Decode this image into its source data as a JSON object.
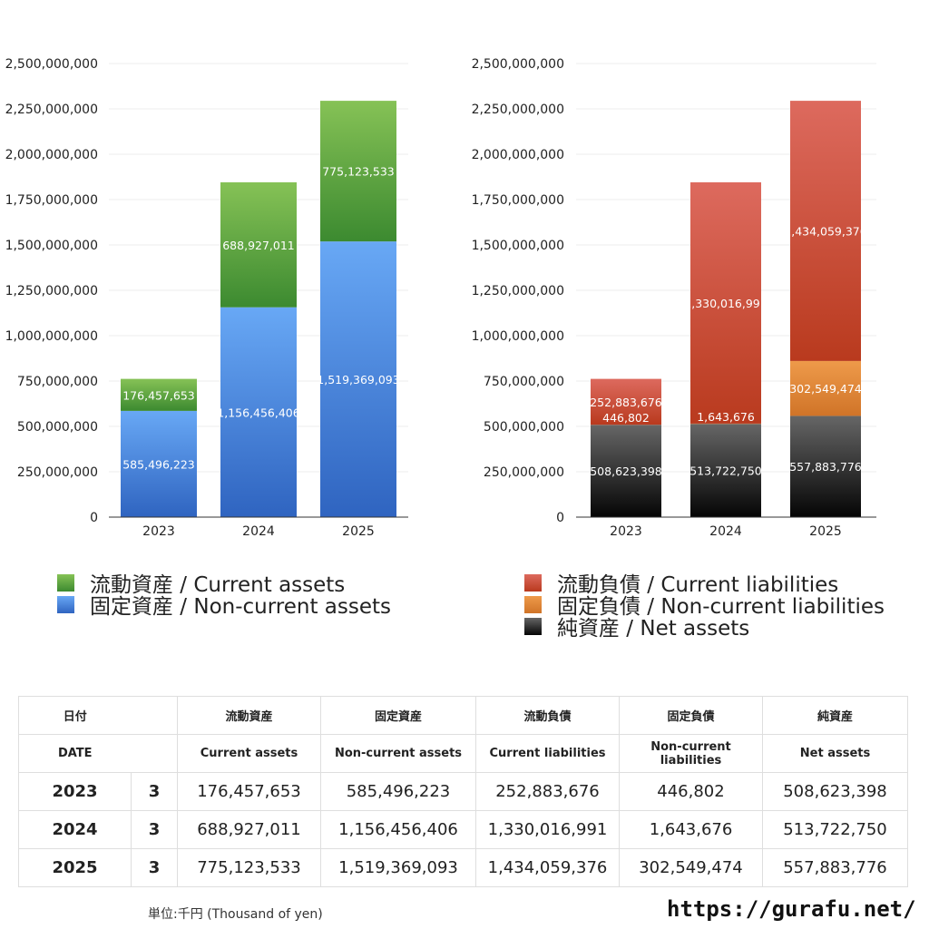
{
  "colors": {
    "current_assets": [
      "#86c256",
      "#3c8a30"
    ],
    "noncurrent_assets": [
      "#68a8f5",
      "#2f64c0"
    ],
    "current_liabilities": [
      "#dd6a5e",
      "#b93a1e"
    ],
    "noncurrent_liabilities": [
      "#ee9a4a",
      "#d07428"
    ],
    "net_assets": [
      "#666666",
      "#050505"
    ]
  },
  "chart_data": [
    {
      "type": "bar",
      "stacked": true,
      "categories": [
        "2023",
        "2024",
        "2025"
      ],
      "ylim": [
        0,
        2500000000
      ],
      "yticks": [
        "0",
        "250,000,000",
        "500,000,000",
        "750,000,000",
        "1,000,000,000",
        "1,250,000,000",
        "1,500,000,000",
        "1,750,000,000",
        "2,000,000,000",
        "2,250,000,000",
        "2,500,000,000"
      ],
      "grid": true,
      "series": [
        {
          "name": "固定資産 / Non-current assets",
          "key": "noncurrent_assets",
          "values": [
            585496223,
            1156456406,
            1519369093
          ],
          "labels": [
            "585,496,223",
            "1,156,456,406",
            "1,519,369,093"
          ]
        },
        {
          "name": "流動資産 / Current assets",
          "key": "current_assets",
          "values": [
            176457653,
            688927011,
            775123533
          ],
          "labels": [
            "176,457,653",
            "688,927,011",
            "775,123,533"
          ]
        }
      ],
      "legend": [
        "流動資産 / Current assets",
        "固定資産 / Non-current assets"
      ]
    },
    {
      "type": "bar",
      "stacked": true,
      "categories": [
        "2023",
        "2024",
        "2025"
      ],
      "ylim": [
        0,
        2500000000
      ],
      "yticks": [
        "0",
        "250,000,000",
        "500,000,000",
        "750,000,000",
        "1,000,000,000",
        "1,250,000,000",
        "1,500,000,000",
        "1,750,000,000",
        "2,000,000,000",
        "2,250,000,000",
        "2,500,000,000"
      ],
      "grid": true,
      "series": [
        {
          "name": "純資産 / Net assets",
          "key": "net_assets",
          "values": [
            508623398,
            513722750,
            557883776
          ],
          "labels": [
            "508,623,398",
            "513,722,750",
            "557,883,776"
          ]
        },
        {
          "name": "固定負債 / Non-current liabilities",
          "key": "noncurrent_liabilities",
          "values": [
            446802,
            1643676,
            302549474
          ],
          "labels": [
            "446,802",
            "1,643,676",
            "302,549,474"
          ]
        },
        {
          "name": "流動負債 / Current liabilities",
          "key": "current_liabilities",
          "values": [
            252883676,
            1330016991,
            1434059376
          ],
          "labels": [
            "252,883,676",
            "1,330,016,991",
            "1,434,059,376"
          ]
        }
      ],
      "legend": [
        "流動負債 / Current liabilities",
        "固定負債 / Non-current liabilities",
        "純資産 / Net assets"
      ]
    }
  ],
  "table": {
    "header_jp": [
      "日付",
      "流動資産",
      "固定資産",
      "流動負債",
      "固定負債",
      "純資産"
    ],
    "header_en": [
      "DATE",
      "Current assets",
      "Non-current assets",
      "Current liabilities",
      "Non-current liabilities",
      "Net assets"
    ],
    "rows": [
      {
        "year": "2023",
        "month": "3",
        "cells": [
          "176,457,653",
          "585,496,223",
          "252,883,676",
          "446,802",
          "508,623,398"
        ]
      },
      {
        "year": "2024",
        "month": "3",
        "cells": [
          "688,927,011",
          "1,156,456,406",
          "1,330,016,991",
          "1,643,676",
          "513,722,750"
        ]
      },
      {
        "year": "2025",
        "month": "3",
        "cells": [
          "775,123,533",
          "1,519,369,093",
          "1,434,059,376",
          "302,549,474",
          "557,883,776"
        ]
      }
    ]
  },
  "footer": {
    "unit": "単位:千円 (Thousand of yen)",
    "url": "https://gurafu.net/"
  }
}
